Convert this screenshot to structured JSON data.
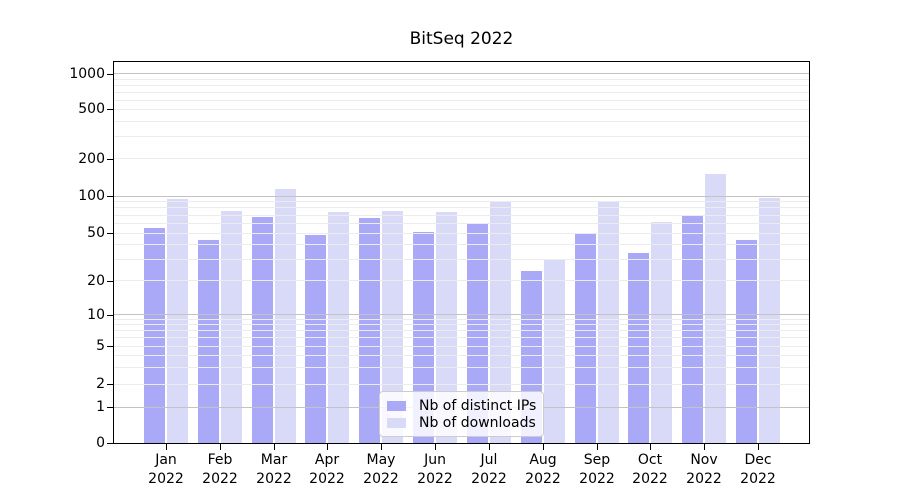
{
  "chart_data": {
    "type": "bar",
    "title": "BitSeq 2022",
    "categories": [
      "Jan 2022",
      "Feb 2022",
      "Mar 2022",
      "Apr 2022",
      "May 2022",
      "Jun 2022",
      "Jul 2022",
      "Aug 2022",
      "Sep 2022",
      "Oct 2022",
      "Nov 2022",
      "Dec 2022"
    ],
    "series": [
      {
        "name": "Nb of distinct IPs",
        "color": "#a9a9f7",
        "values": [
          55,
          44,
          67,
          48,
          66,
          51,
          59,
          24,
          49,
          34,
          69,
          44
        ]
      },
      {
        "name": "Nb of downloads",
        "color": "#d9d9f8",
        "values": [
          94,
          76,
          113,
          74,
          76,
          74,
          90,
          30,
          91,
          61,
          150,
          96
        ]
      }
    ],
    "xlabel": "",
    "ylabel": "",
    "yscale": "symlog",
    "ylim": [
      0,
      1250
    ],
    "yticks": [
      0,
      1,
      2,
      5,
      10,
      20,
      50,
      100,
      200,
      500,
      1000
    ],
    "grid": {
      "horizontal_major": true,
      "horizontal_minor": true,
      "vertical": false
    },
    "legend_position": "inside lower-center"
  }
}
